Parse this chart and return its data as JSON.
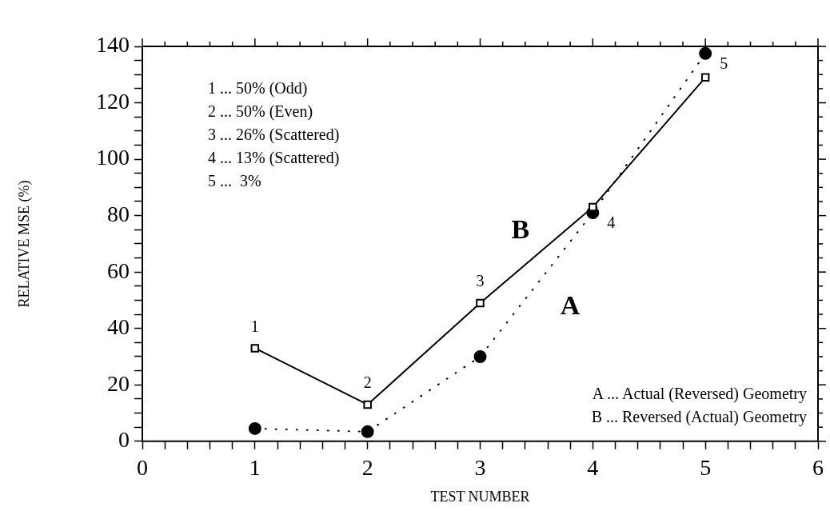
{
  "chart_data": {
    "type": "line",
    "xlabel": "TEST NUMBER",
    "ylabel": "RELATIVE MSE (%)",
    "x": [
      1,
      2,
      3,
      4,
      5
    ],
    "series": [
      {
        "name": "A",
        "color": "#000000",
        "marker": "circle",
        "line_style": "dotted",
        "values": [
          4.5,
          3.4,
          30,
          81,
          137.5
        ]
      },
      {
        "name": "B",
        "color": "#000000",
        "marker": "square",
        "line_style": "solid",
        "values": [
          33,
          13,
          49,
          83,
          129
        ]
      }
    ],
    "xlim": [
      0,
      6
    ],
    "xticks": [
      0,
      {
        "value": 0.2,
        "label": null
      },
      {
        "value": 0.4,
        "label": null
      },
      {
        "value": 0.6,
        "label": null
      },
      {
        "value": 0.8,
        "label": null
      },
      1,
      {
        "value": 1.2,
        "label": null
      },
      {
        "value": 1.4,
        "label": null
      },
      {
        "value": 1.6,
        "label": null
      },
      {
        "value": 1.8,
        "label": null
      },
      2,
      {
        "value": 2.2,
        "label": null
      },
      {
        "value": 2.4,
        "label": null
      },
      {
        "value": 2.6,
        "label": null
      },
      {
        "value": 2.8,
        "label": null
      },
      3,
      {
        "value": 3.2,
        "label": null
      },
      {
        "value": 3.4,
        "label": null
      },
      {
        "value": 3.6,
        "label": null
      },
      {
        "value": 3.8,
        "label": null
      },
      4,
      {
        "value": 4.2,
        "label": null
      },
      {
        "value": 4.4,
        "label": null
      },
      {
        "value": 4.6,
        "label": null
      },
      {
        "value": 4.8,
        "label": null
      },
      5,
      {
        "value": 5.2,
        "label": null
      },
      {
        "value": 5.4,
        "label": null
      },
      {
        "value": 5.6,
        "label": null
      },
      {
        "value": 5.8,
        "label": null
      },
      6
    ],
    "ylim": [
      0,
      140
    ],
    "yticks": [
      0,
      {
        "value": 5,
        "label": null
      },
      {
        "value": 10,
        "label": null
      },
      {
        "value": 15,
        "label": null
      },
      20,
      {
        "value": 25,
        "label": null
      },
      {
        "value": 30,
        "label": null
      },
      {
        "value": 35,
        "label": null
      },
      40,
      {
        "value": 45,
        "label": null
      },
      {
        "value": 50,
        "label": null
      },
      {
        "value": 55,
        "label": null
      },
      60,
      {
        "value": 65,
        "label": null
      },
      {
        "value": 70,
        "label": null
      },
      {
        "value": 75,
        "label": null
      },
      80,
      {
        "value": 85,
        "label": null
      },
      {
        "value": 90,
        "label": null
      },
      {
        "value": 95,
        "label": null
      },
      100,
      {
        "value": 105,
        "label": null
      },
      {
        "value": 110,
        "label": null
      },
      {
        "value": 115,
        "label": null
      },
      120,
      {
        "value": 125,
        "label": null
      },
      {
        "value": 130,
        "label": null
      },
      {
        "value": 135,
        "label": null
      },
      140
    ],
    "grid": false,
    "legend": false,
    "annotations": [
      {
        "text": "1",
        "x": 1,
        "y": 33
      },
      {
        "text": "2",
        "x": 2,
        "y": 13
      },
      {
        "text": "3",
        "x": 3,
        "y": 49
      },
      {
        "text": "4",
        "x": 4,
        "y": 81
      },
      {
        "text": "5",
        "x": 5,
        "y": 137.5
      },
      "1 ... 50% (Odd)",
      "2 ... 50% (Even)",
      "3 ... 26% (Scattered)",
      "4 ... 13% (Scattered)",
      "5 ...  3%",
      "A ... Actual (Reversed) Geometry",
      "B ... Reversed (Actual) Geometry"
    ]
  }
}
